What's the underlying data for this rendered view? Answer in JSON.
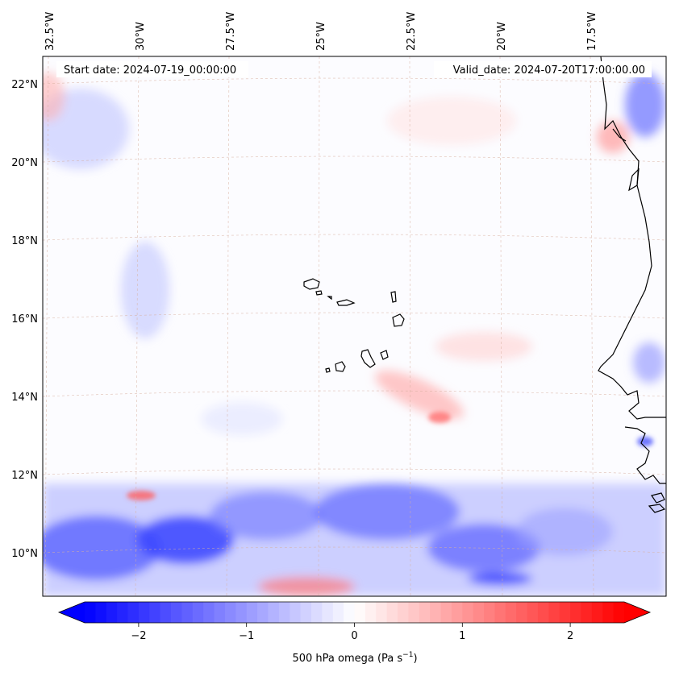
{
  "header": {
    "start_date": "Start date: 2024-07-19_00:00:00",
    "valid_date": "Valid_date: 2024-07-20T17:00:00.00"
  },
  "map": {
    "longitude_labels": [
      "32.5°W",
      "30°W",
      "27.5°W",
      "25°W",
      "22.5°W",
      "20°W",
      "17.5°W"
    ],
    "latitude_labels": [
      "22°N",
      "20°N",
      "18°N",
      "16°N",
      "14°N",
      "12°N",
      "10°N"
    ]
  },
  "colorbar": {
    "label_prefix": "500 hPa omega (Pa s",
    "label_exponent": "−1",
    "label_suffix": ")",
    "ticks": [
      "−2",
      "−1",
      "0",
      "1",
      "2"
    ],
    "tick_values": [
      -2,
      -1,
      0,
      1,
      2
    ],
    "range": [
      -2.5,
      2.5
    ],
    "colors": {
      "negative": "#0000ff",
      "zero": "#ffffff",
      "positive": "#ff0000"
    }
  },
  "colors": {
    "coastline": "#000000",
    "gridline": "#d8b0a0",
    "ascent": "#2a3cff",
    "descent": "#ff5050"
  }
}
